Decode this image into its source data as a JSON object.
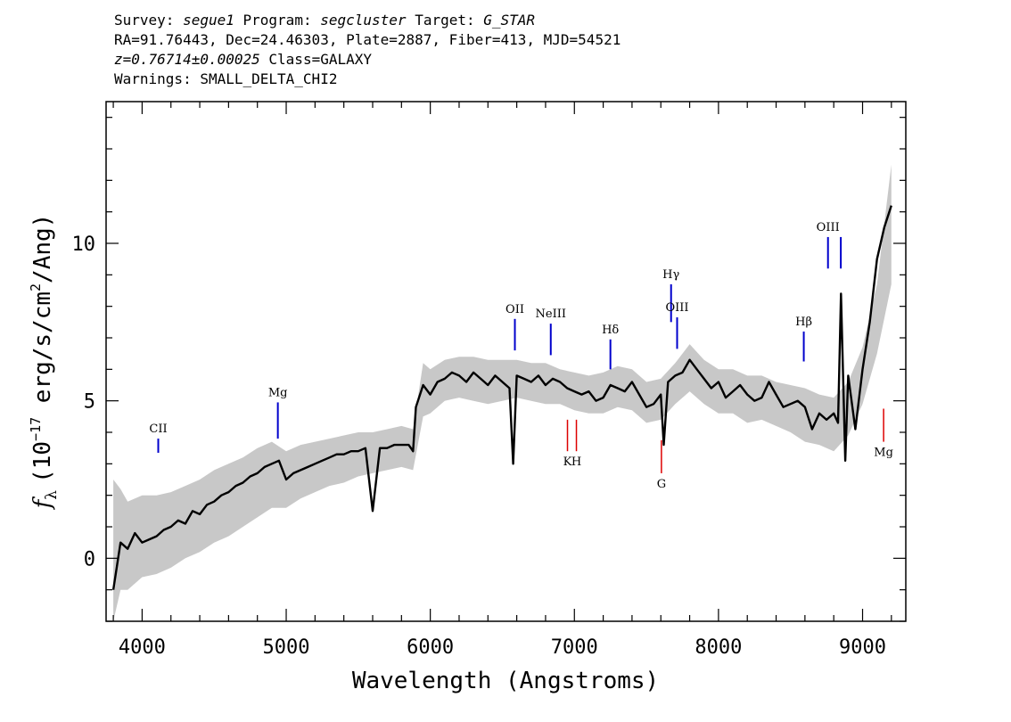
{
  "header": {
    "line1": {
      "survey_label": "Survey:",
      "survey": "segue1",
      "program_label": "Program:",
      "program": "segcluster",
      "target_label": "Target:",
      "target": "G_STAR"
    },
    "line2": "RA=91.76443, Dec=24.46303, Plate=2887, Fiber=413, MJD=54521",
    "line3": {
      "z": "z=0.76714±0.00025",
      "class": "Class=GALAXY"
    },
    "line4": "Warnings: SMALL_DELTA_CHI2"
  },
  "chart_data": {
    "type": "line",
    "title": "",
    "xlabel": "Wavelength (Angstroms)",
    "ylabel": "f_λ (10^-17 erg/s/cm²/Ang)",
    "ylabel_parts": {
      "f": "f",
      "lambda": "λ",
      "open": "(10",
      "exp": "−17",
      "mid": " erg/s/cm",
      "sq": "2",
      "close": "/Ang)"
    },
    "xlim": [
      3750,
      9300
    ],
    "ylim": [
      -2,
      14.5
    ],
    "xticks": [
      4000,
      5000,
      6000,
      7000,
      8000,
      9000
    ],
    "xtick_labels": [
      "4000",
      "5000",
      "6000",
      "7000",
      "8000",
      "9000"
    ],
    "yticks": [
      0,
      5,
      10
    ],
    "ytick_labels": [
      "0",
      "5",
      "10"
    ],
    "series": [
      {
        "role": "flux",
        "color": "#000000",
        "x": [
          3800,
          3850,
          3900,
          3950,
          4000,
          4050,
          4100,
          4150,
          4200,
          4250,
          4300,
          4350,
          4400,
          4450,
          4500,
          4550,
          4600,
          4650,
          4700,
          4750,
          4800,
          4850,
          4900,
          4950,
          5000,
          5050,
          5100,
          5150,
          5200,
          5250,
          5300,
          5350,
          5400,
          5450,
          5500,
          5550,
          5600,
          5650,
          5700,
          5750,
          5800,
          5850,
          5880,
          5900,
          5950,
          6000,
          6050,
          6100,
          6150,
          6200,
          6250,
          6300,
          6350,
          6400,
          6450,
          6500,
          6550,
          6575,
          6600,
          6650,
          6700,
          6750,
          6800,
          6850,
          6900,
          6950,
          7000,
          7050,
          7100,
          7150,
          7200,
          7250,
          7300,
          7350,
          7400,
          7450,
          7500,
          7550,
          7600,
          7620,
          7650,
          7700,
          7750,
          7800,
          7850,
          7900,
          7950,
          8000,
          8050,
          8100,
          8150,
          8200,
          8250,
          8300,
          8350,
          8400,
          8450,
          8500,
          8550,
          8600,
          8650,
          8700,
          8750,
          8800,
          8830,
          8850,
          8880,
          8900,
          8950,
          9000,
          9050,
          9100,
          9150,
          9200
        ],
        "y": [
          -1.0,
          0.5,
          0.3,
          0.8,
          0.5,
          0.6,
          0.7,
          0.9,
          1.0,
          1.2,
          1.1,
          1.5,
          1.4,
          1.7,
          1.8,
          2.0,
          2.1,
          2.3,
          2.4,
          2.6,
          2.7,
          2.9,
          3.0,
          3.1,
          2.5,
          2.7,
          2.8,
          2.9,
          3.0,
          3.1,
          3.2,
          3.3,
          3.3,
          3.4,
          3.4,
          3.5,
          1.5,
          3.5,
          3.5,
          3.6,
          3.6,
          3.6,
          3.4,
          4.8,
          5.5,
          5.2,
          5.6,
          5.7,
          5.9,
          5.8,
          5.6,
          5.9,
          5.7,
          5.5,
          5.8,
          5.6,
          5.4,
          3.0,
          5.8,
          5.7,
          5.6,
          5.8,
          5.5,
          5.7,
          5.6,
          5.4,
          5.3,
          5.2,
          5.3,
          5.0,
          5.1,
          5.5,
          5.4,
          5.3,
          5.6,
          5.2,
          4.8,
          4.9,
          5.2,
          3.6,
          5.6,
          5.8,
          5.9,
          6.3,
          6.0,
          5.7,
          5.4,
          5.6,
          5.1,
          5.3,
          5.5,
          5.2,
          5.0,
          5.1,
          5.6,
          5.2,
          4.8,
          4.9,
          5.0,
          4.8,
          4.1,
          4.6,
          4.4,
          4.6,
          4.3,
          8.4,
          3.1,
          5.8,
          4.1,
          6.0,
          7.5,
          9.5,
          10.5,
          11.2
        ]
      },
      {
        "role": "error_band",
        "color": "#c8c8c8",
        "x": [
          3800,
          3850,
          3900,
          3950,
          4000,
          4100,
          4200,
          4300,
          4400,
          4500,
          4600,
          4700,
          4800,
          4900,
          5000,
          5100,
          5200,
          5300,
          5400,
          5500,
          5600,
          5700,
          5800,
          5880,
          5950,
          6000,
          6100,
          6200,
          6300,
          6400,
          6500,
          6600,
          6700,
          6800,
          6900,
          7000,
          7100,
          7200,
          7300,
          7400,
          7500,
          7600,
          7700,
          7800,
          7900,
          8000,
          8100,
          8200,
          8300,
          8400,
          8500,
          8600,
          8700,
          8800,
          8900,
          9000,
          9100,
          9200
        ],
        "y_low": [
          -2.0,
          -1.0,
          -1.0,
          -0.8,
          -0.6,
          -0.5,
          -0.3,
          0.0,
          0.2,
          0.5,
          0.7,
          1.0,
          1.3,
          1.6,
          1.6,
          1.9,
          2.1,
          2.3,
          2.4,
          2.6,
          2.7,
          2.8,
          2.9,
          2.8,
          4.5,
          4.6,
          5.0,
          5.1,
          5.0,
          4.9,
          5.0,
          5.1,
          5.0,
          4.9,
          4.9,
          4.7,
          4.6,
          4.6,
          4.8,
          4.7,
          4.3,
          4.4,
          4.9,
          5.3,
          4.9,
          4.6,
          4.6,
          4.3,
          4.4,
          4.2,
          4.0,
          3.7,
          3.6,
          3.4,
          3.9,
          4.9,
          6.5,
          8.7
        ],
        "y_high": [
          2.5,
          2.2,
          1.8,
          1.9,
          2.0,
          2.0,
          2.1,
          2.3,
          2.5,
          2.8,
          3.0,
          3.2,
          3.5,
          3.7,
          3.4,
          3.6,
          3.7,
          3.8,
          3.9,
          4.0,
          4.0,
          4.1,
          4.2,
          4.1,
          6.2,
          6.0,
          6.3,
          6.4,
          6.4,
          6.3,
          6.3,
          6.3,
          6.2,
          6.2,
          6.0,
          5.9,
          5.8,
          5.9,
          6.1,
          6.0,
          5.6,
          5.7,
          6.2,
          6.8,
          6.3,
          6.0,
          6.0,
          5.8,
          5.8,
          5.6,
          5.5,
          5.4,
          5.2,
          5.1,
          5.6,
          6.7,
          8.7,
          12.5
        ]
      }
    ],
    "emission_lines": [
      {
        "label": "CII",
        "x": 4112,
        "y0": 3.35,
        "y1": 3.8,
        "color": "#0000cc"
      },
      {
        "label": "Mg",
        "x": 4942,
        "y0": 3.8,
        "y1": 4.95,
        "color": "#0000cc"
      },
      {
        "label": "OII",
        "x": 6587,
        "y0": 6.6,
        "y1": 7.6,
        "color": "#0000cc"
      },
      {
        "label": "NeIII",
        "x": 6836,
        "y0": 6.45,
        "y1": 7.45,
        "color": "#0000cc"
      },
      {
        "label": "Hδ",
        "x": 7250,
        "y0": 6.0,
        "y1": 6.95,
        "color": "#0000cc"
      },
      {
        "label": "Hγ",
        "x": 7671,
        "y0": 7.5,
        "y1": 8.7,
        "color": "#0000cc"
      },
      {
        "label": "OIII",
        "x": 7713,
        "y0": 6.65,
        "y1": 7.65,
        "color": "#0000cc"
      },
      {
        "label": "Hβ",
        "x": 8592,
        "y0": 6.25,
        "y1": 7.2,
        "color": "#0000cc"
      },
      {
        "label": "OIII",
        "x": 8760,
        "y0": 9.2,
        "y1": 10.2,
        "color": "#0000cc"
      },
      {
        "label": "",
        "x": 8849,
        "y0": 9.2,
        "y1": 10.2,
        "color": "#0000cc"
      }
    ],
    "absorption_lines": [
      {
        "label": "K",
        "x": 6952,
        "y0": 3.4,
        "y1": 4.4,
        "color": "#dd0000"
      },
      {
        "label": "H",
        "x": 7014,
        "y0": 3.4,
        "y1": 4.4,
        "color": "#dd0000"
      },
      {
        "label": "G",
        "x": 7604,
        "y0": 2.7,
        "y1": 3.75,
        "color": "#dd0000"
      },
      {
        "label": "Mg",
        "x": 9146,
        "y0": 3.7,
        "y1": 4.75,
        "color": "#dd0000"
      }
    ]
  }
}
